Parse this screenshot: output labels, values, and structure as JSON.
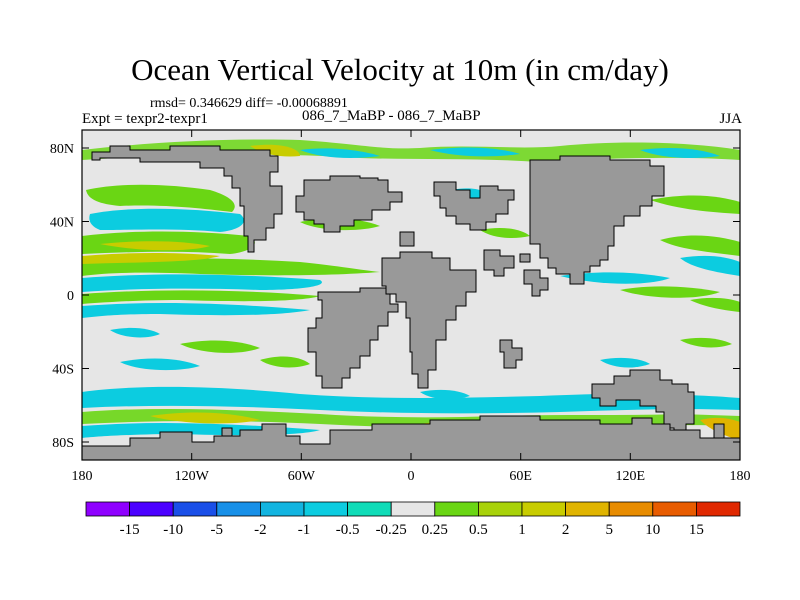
{
  "title": "Ocean Vertical Velocity at 10m (in cm/day)",
  "stats": "rmsd= 0.346629 diff= -0.00068891",
  "expt": "Expt = texpr2-texpr1",
  "cases": "086_7_MaBP - 086_7_MaBP",
  "season": "JJA",
  "x_ticks": [
    "180",
    "120W",
    "60W",
    "0",
    "60E",
    "120E",
    "180"
  ],
  "y_ticks": [
    "80N",
    "40N",
    "0",
    "40S",
    "80S"
  ],
  "colorbar": {
    "colors": [
      "#8f00ff",
      "#4b00ff",
      "#1a4fe8",
      "#1890e8",
      "#12b4e0",
      "#0ccce0",
      "#10dcb8",
      "#e6e6e6",
      "#6ad614",
      "#a8d20a",
      "#c8cc00",
      "#e0b400",
      "#e88c00",
      "#e85c00",
      "#e02800"
    ],
    "labels": [
      "-15",
      "-10",
      "-5",
      "-2",
      "-1",
      "-0.5",
      "-0.25",
      "0.25",
      "0.5",
      "1",
      "2",
      "5",
      "10",
      "15"
    ]
  },
  "colors": {
    "land": "#999999",
    "ocean_background": "#e6e6e6"
  }
}
